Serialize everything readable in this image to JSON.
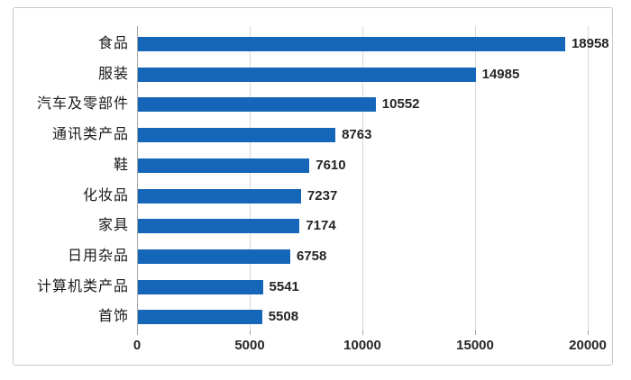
{
  "chart_data": {
    "type": "bar",
    "orientation": "horizontal",
    "title": "",
    "categories": [
      "食品",
      "服装",
      "汽车及零部件",
      "通讯类产品",
      "鞋",
      "化妆品",
      "家具",
      "日用杂品",
      "计算机类产品",
      "首饰"
    ],
    "values": [
      18958,
      14985,
      10552,
      8763,
      7610,
      7237,
      7174,
      6758,
      5541,
      5508
    ],
    "value_labels": [
      "18958",
      "14985",
      "10552",
      "8763",
      "7610",
      "7237",
      "7174",
      "6758",
      "5541",
      "5508"
    ],
    "x_ticks": [
      "0",
      "5000",
      "10000",
      "15000",
      "20000"
    ],
    "x_tick_values": [
      0,
      5000,
      10000,
      15000,
      20000
    ],
    "xlim": [
      0,
      20000
    ],
    "grid": true,
    "legend": false,
    "colors": {
      "bar": "#1565B8",
      "gridline": "#d9d9d9",
      "axis_line": "#a6a6a6",
      "frame_border": "#c9c9c9",
      "text": "#262626"
    }
  }
}
